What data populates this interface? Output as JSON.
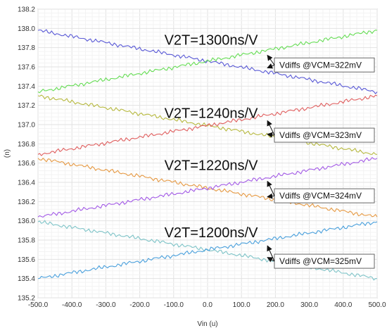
{
  "chart_data": {
    "type": "line",
    "xlabel": "Vin (u)",
    "ylabel": "(n)",
    "xlim": [
      -500,
      500
    ],
    "ylim": [
      135.2,
      138.2
    ],
    "xticks": [
      "-500.0",
      "-400.0",
      "-300.0",
      "-200.0",
      "-100.0",
      "0.0",
      "100.0",
      "200.0",
      "300.0",
      "400.0",
      "500.0"
    ],
    "yticks": [
      "135.2",
      "135.4",
      "135.6",
      "135.8",
      "136.0",
      "136.2",
      "136.4",
      "136.6",
      "136.8",
      "137.0",
      "137.2",
      "137.4",
      "137.6",
      "137.8",
      "138.0",
      "138.2"
    ],
    "grid": true,
    "series": [
      {
        "color": "#5a5ad6",
        "x": [
          -500,
          0,
          500
        ],
        "y": [
          137.98,
          137.66,
          137.34
        ]
      },
      {
        "color": "#66dd55",
        "x": [
          -500,
          0,
          500
        ],
        "y": [
          137.34,
          137.66,
          137.98
        ]
      },
      {
        "color": "#b7b940",
        "x": [
          -500,
          0,
          500
        ],
        "y": [
          137.3,
          136.99,
          136.69
        ]
      },
      {
        "color": "#e06060",
        "x": [
          -500,
          0,
          500
        ],
        "y": [
          136.69,
          136.99,
          137.3
        ]
      },
      {
        "color": "#e69a44",
        "x": [
          -500,
          0,
          500
        ],
        "y": [
          136.65,
          136.34,
          136.04
        ]
      },
      {
        "color": "#a35be6",
        "x": [
          -500,
          0,
          500
        ],
        "y": [
          136.04,
          136.34,
          136.65
        ]
      },
      {
        "color": "#7fc4c8",
        "x": [
          -500,
          0,
          500
        ],
        "y": [
          135.99,
          135.7,
          135.4
        ]
      },
      {
        "color": "#4aa0dc",
        "x": [
          -500,
          0,
          500
        ],
        "y": [
          135.4,
          135.7,
          135.99
        ]
      }
    ],
    "annotations": [
      {
        "title": "V2T=1300ns/V",
        "title_y": 137.88,
        "box": "Vdiffs @VCM=322mV",
        "box_y": 137.62,
        "arrow_x": 160,
        "arrow_to": [
          137.72,
          137.59
        ]
      },
      {
        "title": "V2T=1240ns/V",
        "title_y": 137.12,
        "box": "Vdiffs @VCM=323mV",
        "box_y": 136.89,
        "arrow_x": 160,
        "arrow_to": [
          137.04,
          136.9
        ]
      },
      {
        "title": "V2T=1220ns/V",
        "title_y": 136.58,
        "box": "Vdiffs @VCM=324mV",
        "box_y": 136.26,
        "arrow_x": 160,
        "arrow_to": [
          136.41,
          136.25
        ]
      },
      {
        "title": "V2T=1200ns/V",
        "title_y": 135.88,
        "box": "Vdiffs @VCM=325mV",
        "box_y": 135.58,
        "arrow_x": 160,
        "arrow_to": [
          135.74,
          135.62
        ]
      }
    ]
  }
}
